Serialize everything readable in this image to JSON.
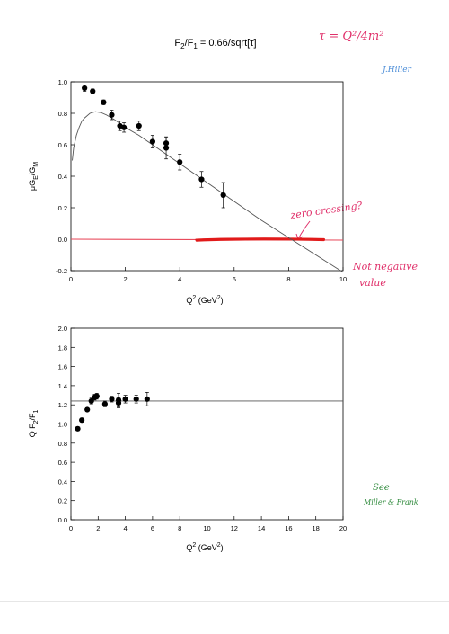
{
  "page": {
    "title": {
      "lead": "F",
      "sub1": "2",
      "mid": "/F",
      "sub2": "1",
      "tail": " = 0.66/sqrt[τ]"
    }
  },
  "handwriting": {
    "tau_note": "τ = Q²/4m²",
    "author_note": "J.Hiller",
    "zero_crossing": "zero crossing?",
    "negative_1": "Not negative",
    "negative_2": "value",
    "see_1": "See",
    "see_2": "Miller & Frank",
    "colors": {
      "red": "#e0306a",
      "blue": "#4f8fd8",
      "green": "#2f8a3c",
      "red_band": "#e11a1a"
    }
  },
  "chart_data": [
    {
      "type": "scatter",
      "ylabel": {
        "lead": "μG",
        "sub1": "E",
        "mid": "/G",
        "sub2": "M"
      },
      "xlabel": {
        "lead": "Q",
        "sup": "2",
        "tail": " (GeV",
        "sup2": "2",
        "end": ")"
      },
      "xlim": [
        0,
        10
      ],
      "ylim": [
        -0.2,
        1.0
      ],
      "xticks": [
        "0",
        "2",
        "4",
        "6",
        "8",
        "10"
      ],
      "yticks": [
        "-0.2",
        "0.0",
        "0.2",
        "0.4",
        "0.6",
        "0.8",
        "1.0"
      ],
      "points": {
        "x": [
          0.5,
          0.8,
          1.2,
          1.5,
          1.8,
          1.95,
          2.5,
          3.0,
          3.5,
          3.5,
          4.0,
          4.8,
          5.6
        ],
        "y": [
          0.96,
          0.94,
          0.87,
          0.79,
          0.72,
          0.71,
          0.72,
          0.62,
          0.61,
          0.58,
          0.49,
          0.38,
          0.28
        ],
        "err": [
          0.02,
          0.015,
          0.015,
          0.03,
          0.03,
          0.03,
          0.03,
          0.04,
          0.04,
          0.07,
          0.05,
          0.05,
          0.08
        ]
      },
      "fit_curve": {
        "x": [
          0.05,
          0.1,
          0.2,
          0.3,
          0.4,
          0.5,
          0.7,
          0.9,
          1.1,
          1.3,
          1.6,
          2.0,
          2.5,
          3.0,
          4.0,
          5.0,
          6.0,
          7.0,
          8.0,
          9.0,
          10.0
        ],
        "y": [
          0.5,
          0.58,
          0.66,
          0.71,
          0.75,
          0.77,
          0.8,
          0.81,
          0.805,
          0.79,
          0.76,
          0.71,
          0.66,
          0.6,
          0.48,
          0.36,
          0.24,
          0.12,
          0.01,
          -0.1,
          -0.21
        ]
      },
      "zero_line": {
        "y": 0.0,
        "color": "#e8485a"
      }
    },
    {
      "type": "scatter",
      "ylabel": {
        "lead": "Q F",
        "sub1": "2",
        "mid": "/F",
        "sub2": "1"
      },
      "xlabel": {
        "lead": "Q",
        "sup": "2",
        "tail": " (GeV",
        "sup2": "2",
        "end": ")"
      },
      "xlim": [
        0,
        20
      ],
      "ylim": [
        0.0,
        2.0
      ],
      "xticks": [
        "0",
        "2",
        "4",
        "6",
        "8",
        "10",
        "12",
        "14",
        "16",
        "18",
        "20"
      ],
      "yticks": [
        "0.0",
        "0.2",
        "0.4",
        "0.6",
        "0.8",
        "1.0",
        "1.2",
        "1.4",
        "1.6",
        "1.8",
        "2.0"
      ],
      "points": {
        "x": [
          0.5,
          0.8,
          1.2,
          1.5,
          1.75,
          1.9,
          2.5,
          3.0,
          3.5,
          3.5,
          4.0,
          4.8,
          5.6
        ],
        "y": [
          0.95,
          1.04,
          1.15,
          1.24,
          1.28,
          1.29,
          1.21,
          1.26,
          1.22,
          1.25,
          1.26,
          1.26,
          1.26
        ],
        "err": [
          0.02,
          0.02,
          0.02,
          0.03,
          0.03,
          0.03,
          0.03,
          0.03,
          0.05,
          0.07,
          0.04,
          0.04,
          0.07
        ]
      },
      "fit_curve": {
        "x": [
          0,
          20
        ],
        "y": [
          1.24,
          1.24
        ]
      }
    }
  ]
}
